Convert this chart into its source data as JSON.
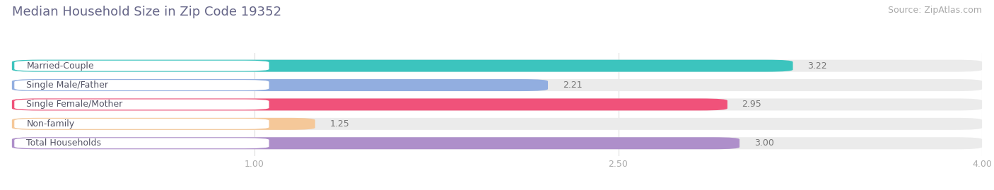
{
  "title": "Median Household Size in Zip Code 19352",
  "source": "Source: ZipAtlas.com",
  "categories": [
    "Married-Couple",
    "Single Male/Father",
    "Single Female/Mother",
    "Non-family",
    "Total Households"
  ],
  "values": [
    3.22,
    2.21,
    2.95,
    1.25,
    3.0
  ],
  "bar_colors": [
    "#3cc4be",
    "#92aee0",
    "#f0527a",
    "#f5c899",
    "#ae8fca"
  ],
  "label_text_color": "#555566",
  "xlim_min": 0.0,
  "xlim_max": 4.0,
  "xticks": [
    1.0,
    2.5,
    4.0
  ],
  "xticklabels": [
    "1.00",
    "2.50",
    "4.00"
  ],
  "title_fontsize": 13,
  "source_fontsize": 9,
  "label_fontsize": 9,
  "value_fontsize": 9,
  "background_color": "#ffffff",
  "bar_height": 0.62,
  "bar_bg_color": "#ebebeb",
  "label_pill_color": "#ffffff",
  "grid_color": "#dddddd",
  "title_color": "#666688",
  "source_color": "#aaaaaa",
  "tick_color": "#aaaaaa",
  "value_color": "#777777"
}
